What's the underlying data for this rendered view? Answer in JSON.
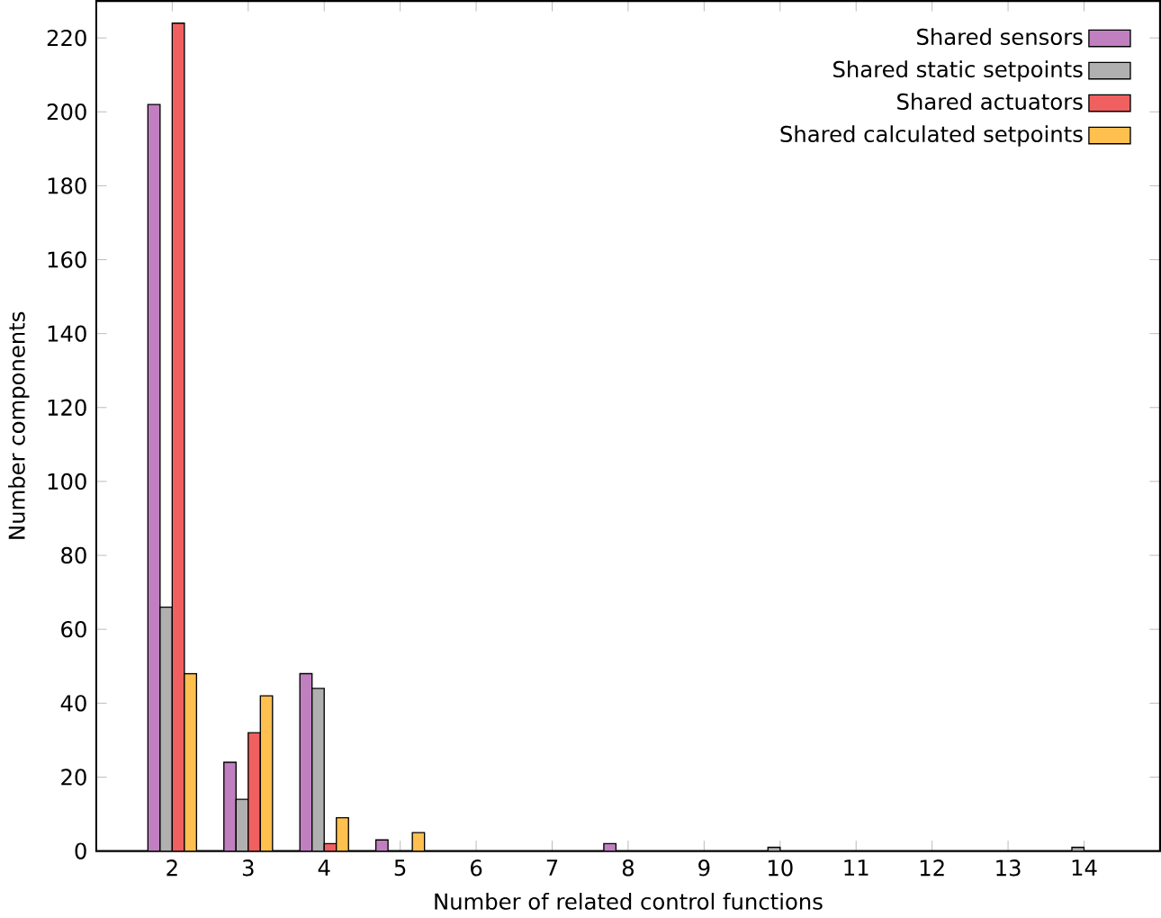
{
  "chart_data": {
    "type": "bar",
    "xlabel": "Number of related control functions",
    "ylabel": "Number components",
    "x": [
      2,
      3,
      4,
      5,
      6,
      7,
      8,
      9,
      10,
      11,
      12,
      13,
      14
    ],
    "series": [
      {
        "name": "Shared sensors",
        "color": "#c080c0",
        "values": [
          202,
          24,
          48,
          3,
          null,
          null,
          2,
          null,
          null,
          null,
          null,
          null,
          null
        ]
      },
      {
        "name": "Shared static setpoints",
        "color": "#b0b0b0",
        "values": [
          66,
          14,
          44,
          null,
          null,
          null,
          null,
          null,
          1,
          null,
          null,
          null,
          1
        ]
      },
      {
        "name": "Shared actuators",
        "color": "#f06060",
        "values": [
          224,
          32,
          2,
          null,
          null,
          null,
          null,
          null,
          null,
          null,
          null,
          null,
          null
        ]
      },
      {
        "name": "Shared calculated setpoints",
        "color": "#ffc050",
        "values": [
          48,
          42,
          9,
          5,
          null,
          null,
          null,
          null,
          null,
          null,
          null,
          null,
          null
        ]
      }
    ],
    "xlim": [
      1,
      15
    ],
    "xticks": [
      2,
      3,
      4,
      5,
      6,
      7,
      8,
      9,
      10,
      11,
      12,
      13,
      14
    ],
    "ylim": [
      0,
      230
    ],
    "yticks": [
      0,
      20,
      40,
      60,
      80,
      100,
      120,
      140,
      160,
      180,
      200,
      220
    ],
    "grid": false,
    "legend": "top right"
  }
}
